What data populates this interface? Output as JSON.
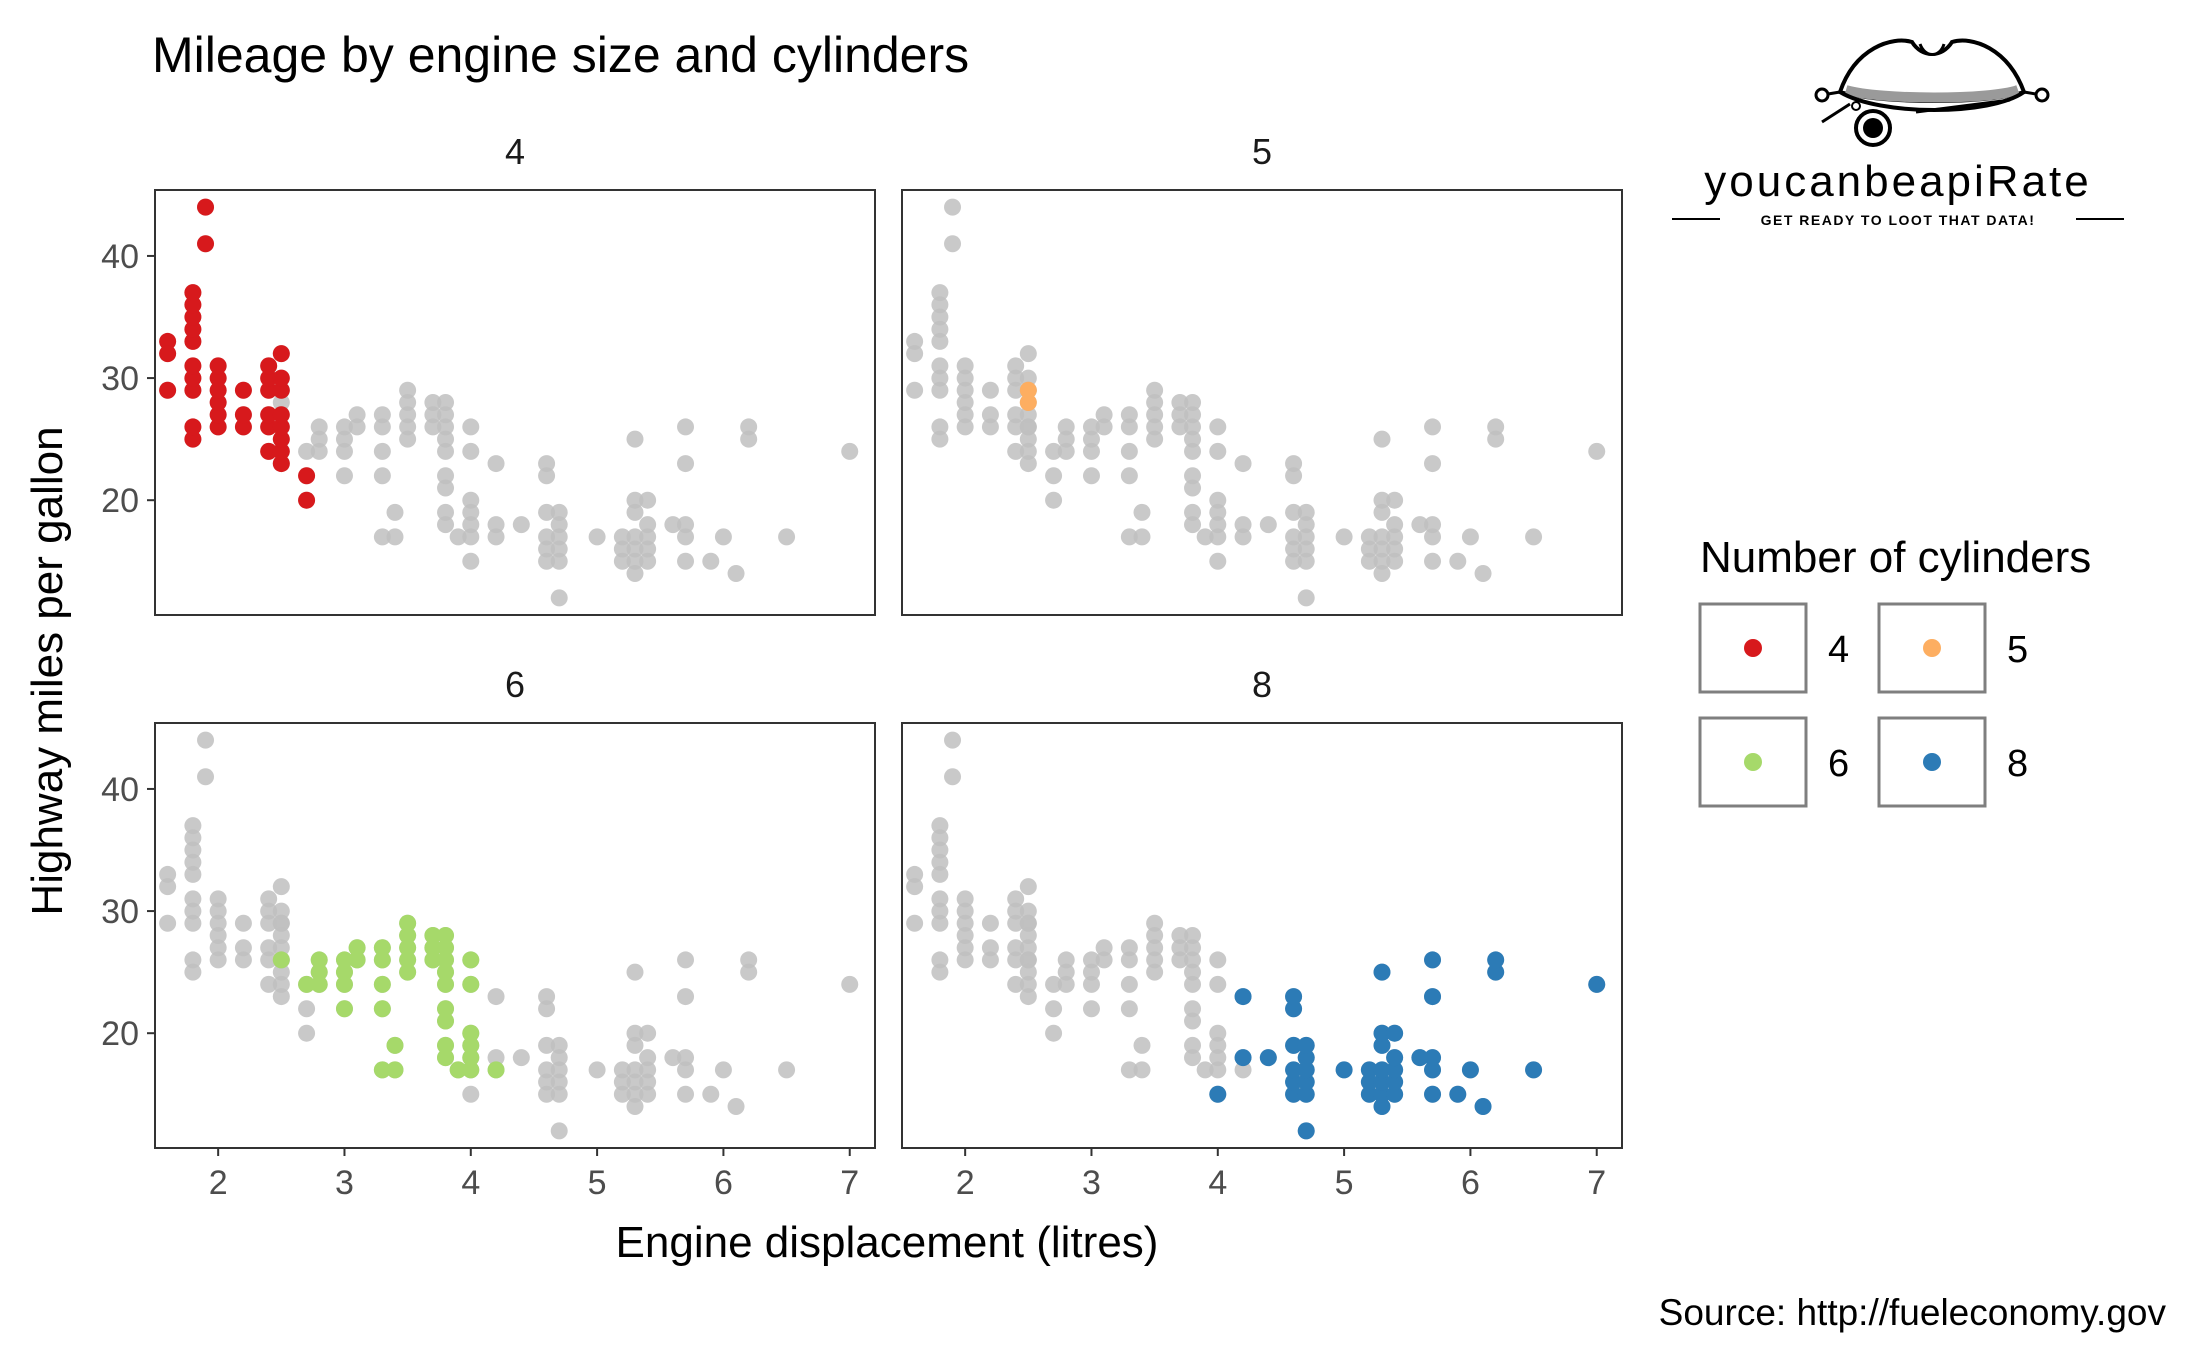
{
  "chart_data": {
    "type": "scatter",
    "title": "Mileage by engine size and cylinders",
    "xlabel": "Engine displacement (litres)",
    "ylabel": "Highway miles per gallon",
    "caption": "Source: http://fueleconomy.gov",
    "xlim": [
      1.5,
      7.2
    ],
    "ylim": [
      10.6,
      45.4
    ],
    "x_ticks": [
      2,
      3,
      4,
      5,
      6,
      7
    ],
    "y_ticks": [
      20,
      30,
      40
    ],
    "grid": false,
    "facet_by": "cylinders",
    "background_color": "#c0c0c0",
    "legend": {
      "title": "Number of cylinders",
      "position": "right",
      "items": [
        {
          "label": "4",
          "color": "#d7191c"
        },
        {
          "label": "5",
          "color": "#fdae61"
        },
        {
          "label": "6",
          "color": "#a6d96a"
        },
        {
          "label": "8",
          "color": "#2c7bb6"
        }
      ]
    },
    "panels": [
      {
        "label": "4",
        "color": "#d7191c"
      },
      {
        "label": "5",
        "color": "#fdae61"
      },
      {
        "label": "6",
        "color": "#a6d96a"
      },
      {
        "label": "8",
        "color": "#2c7bb6"
      }
    ],
    "series": [
      {
        "name": "4",
        "color": "#d7191c",
        "points": [
          [
            1.6,
            33
          ],
          [
            1.6,
            32
          ],
          [
            1.6,
            29
          ],
          [
            1.8,
            25
          ],
          [
            1.8,
            26
          ],
          [
            1.8,
            29
          ],
          [
            1.8,
            30
          ],
          [
            1.8,
            31
          ],
          [
            1.8,
            33
          ],
          [
            1.8,
            34
          ],
          [
            1.8,
            35
          ],
          [
            1.8,
            36
          ],
          [
            1.8,
            37
          ],
          [
            1.9,
            41
          ],
          [
            1.9,
            44
          ],
          [
            2.0,
            26
          ],
          [
            2.0,
            27
          ],
          [
            2.0,
            28
          ],
          [
            2.0,
            29
          ],
          [
            2.0,
            30
          ],
          [
            2.0,
            31
          ],
          [
            2.2,
            26
          ],
          [
            2.2,
            27
          ],
          [
            2.2,
            29
          ],
          [
            2.4,
            24
          ],
          [
            2.4,
            26
          ],
          [
            2.4,
            27
          ],
          [
            2.4,
            29
          ],
          [
            2.4,
            30
          ],
          [
            2.4,
            31
          ],
          [
            2.5,
            23
          ],
          [
            2.5,
            24
          ],
          [
            2.5,
            25
          ],
          [
            2.5,
            26
          ],
          [
            2.5,
            27
          ],
          [
            2.5,
            29
          ],
          [
            2.5,
            30
          ],
          [
            2.5,
            32
          ],
          [
            2.7,
            20
          ],
          [
            2.7,
            22
          ]
        ]
      },
      {
        "name": "5",
        "color": "#fdae61",
        "points": [
          [
            2.5,
            28
          ],
          [
            2.5,
            29
          ]
        ]
      },
      {
        "name": "6",
        "color": "#a6d96a",
        "points": [
          [
            2.5,
            26
          ],
          [
            2.7,
            24
          ],
          [
            2.8,
            24
          ],
          [
            2.8,
            25
          ],
          [
            2.8,
            26
          ],
          [
            3.0,
            22
          ],
          [
            3.0,
            24
          ],
          [
            3.0,
            25
          ],
          [
            3.0,
            26
          ],
          [
            3.1,
            26
          ],
          [
            3.1,
            27
          ],
          [
            3.3,
            17
          ],
          [
            3.3,
            22
          ],
          [
            3.3,
            24
          ],
          [
            3.3,
            26
          ],
          [
            3.3,
            27
          ],
          [
            3.4,
            17
          ],
          [
            3.4,
            19
          ],
          [
            3.5,
            25
          ],
          [
            3.5,
            26
          ],
          [
            3.5,
            27
          ],
          [
            3.5,
            28
          ],
          [
            3.5,
            29
          ],
          [
            3.7,
            26
          ],
          [
            3.7,
            27
          ],
          [
            3.7,
            28
          ],
          [
            3.8,
            18
          ],
          [
            3.8,
            19
          ],
          [
            3.8,
            21
          ],
          [
            3.8,
            22
          ],
          [
            3.8,
            24
          ],
          [
            3.8,
            25
          ],
          [
            3.8,
            26
          ],
          [
            3.8,
            27
          ],
          [
            3.8,
            28
          ],
          [
            3.9,
            17
          ],
          [
            4.0,
            17
          ],
          [
            4.0,
            18
          ],
          [
            4.0,
            19
          ],
          [
            4.0,
            20
          ],
          [
            4.0,
            24
          ],
          [
            4.0,
            26
          ],
          [
            4.2,
            17
          ]
        ]
      },
      {
        "name": "8",
        "color": "#2c7bb6",
        "points": [
          [
            4.0,
            15
          ],
          [
            4.2,
            23
          ],
          [
            4.2,
            18
          ],
          [
            4.4,
            18
          ],
          [
            4.6,
            15
          ],
          [
            4.6,
            16
          ],
          [
            4.6,
            17
          ],
          [
            4.6,
            19
          ],
          [
            4.6,
            22
          ],
          [
            4.6,
            23
          ],
          [
            4.7,
            12
          ],
          [
            4.7,
            15
          ],
          [
            4.7,
            16
          ],
          [
            4.7,
            17
          ],
          [
            4.7,
            18
          ],
          [
            4.7,
            19
          ],
          [
            5.0,
            17
          ],
          [
            5.2,
            15
          ],
          [
            5.2,
            16
          ],
          [
            5.2,
            17
          ],
          [
            5.3,
            14
          ],
          [
            5.3,
            15
          ],
          [
            5.3,
            16
          ],
          [
            5.3,
            17
          ],
          [
            5.3,
            19
          ],
          [
            5.3,
            20
          ],
          [
            5.3,
            25
          ],
          [
            5.4,
            15
          ],
          [
            5.4,
            16
          ],
          [
            5.4,
            17
          ],
          [
            5.4,
            18
          ],
          [
            5.4,
            20
          ],
          [
            5.6,
            18
          ],
          [
            5.7,
            15
          ],
          [
            5.7,
            17
          ],
          [
            5.7,
            18
          ],
          [
            5.7,
            23
          ],
          [
            5.7,
            26
          ],
          [
            5.9,
            15
          ],
          [
            6.0,
            17
          ],
          [
            6.1,
            14
          ],
          [
            6.2,
            25
          ],
          [
            6.2,
            26
          ],
          [
            6.5,
            17
          ],
          [
            7.0,
            24
          ]
        ]
      }
    ]
  },
  "logo": {
    "wordmark": "youcanbeapiRate",
    "tagline": "GET READY TO LOOT THAT DATA!"
  }
}
